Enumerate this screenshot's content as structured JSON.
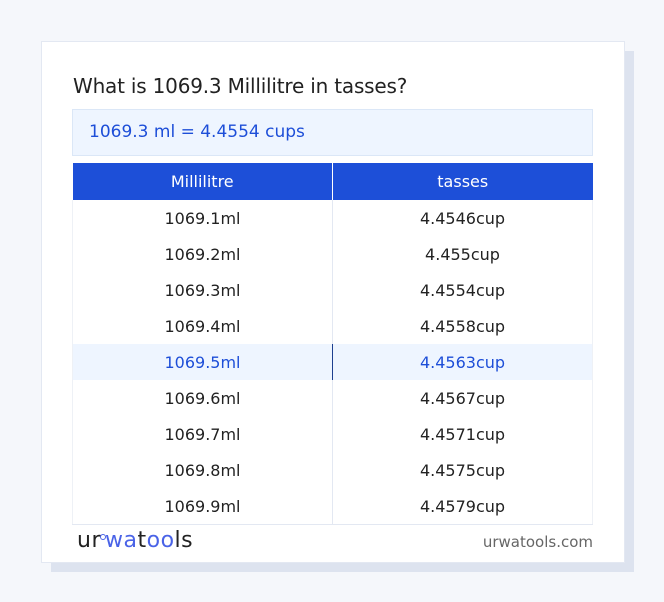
{
  "title": "What is 1069.3 Millilitre in tasses?",
  "result": "1069.3 ml = 4.4554 cups",
  "table": {
    "headers": [
      "Millilitre",
      "tasses"
    ],
    "rows": [
      {
        "ml": "1069.1ml",
        "cup": "4.4546cup",
        "highlighted": false
      },
      {
        "ml": "1069.2ml",
        "cup": "4.455cup",
        "highlighted": false
      },
      {
        "ml": "1069.3ml",
        "cup": "4.4554cup",
        "highlighted": false
      },
      {
        "ml": "1069.4ml",
        "cup": "4.4558cup",
        "highlighted": false
      },
      {
        "ml": "1069.5ml",
        "cup": "4.4563cup",
        "highlighted": true
      },
      {
        "ml": "1069.6ml",
        "cup": "4.4567cup",
        "highlighted": false
      },
      {
        "ml": "1069.7ml",
        "cup": "4.4571cup",
        "highlighted": false
      },
      {
        "ml": "1069.8ml",
        "cup": "4.4575cup",
        "highlighted": false
      },
      {
        "ml": "1069.9ml",
        "cup": "4.4579cup",
        "highlighted": false
      }
    ]
  },
  "footer": {
    "logo": "urwatools",
    "site": "urwatools.com"
  },
  "colors": {
    "accent": "#1d4fd8",
    "highlight_bg": "#eef5ff"
  }
}
